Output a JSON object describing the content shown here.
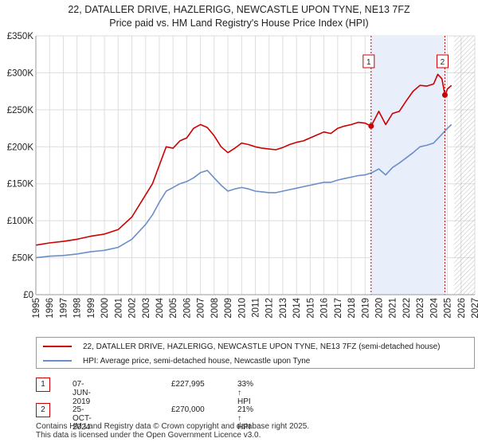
{
  "title_line1": "22, DATALLER DRIVE, HAZLERIGG, NEWCASTLE UPON TYNE, NE13 7FZ",
  "title_line2": "Price paid vs. HM Land Registry's House Price Index (HPI)",
  "colors": {
    "property": "#cc0000",
    "hpi": "#6a8fc8",
    "band": "#e8eefa",
    "grid": "#dddddd"
  },
  "chart_data": {
    "type": "line",
    "title": "22, DATALLER DRIVE, HAZLERIGG, NEWCASTLE UPON TYNE, NE13 7FZ — Price paid vs. HM Land Registry's House Price Index (HPI)",
    "xlabel": "",
    "ylabel": "",
    "xlim": [
      1995,
      2027
    ],
    "ylim": [
      0,
      350000
    ],
    "x_ticks": [
      1995,
      1996,
      1997,
      1998,
      1999,
      2000,
      2001,
      2002,
      2003,
      2004,
      2005,
      2006,
      2007,
      2008,
      2009,
      2010,
      2011,
      2012,
      2013,
      2014,
      2015,
      2016,
      2017,
      2018,
      2019,
      2020,
      2021,
      2022,
      2023,
      2024,
      2025,
      2026,
      2027
    ],
    "y_ticks": [
      0,
      50000,
      100000,
      150000,
      200000,
      250000,
      300000,
      350000
    ],
    "y_tick_labels": [
      "£0",
      "£50K",
      "£100K",
      "£150K",
      "£200K",
      "£250K",
      "£300K",
      "£350K"
    ],
    "highlight_band": [
      2019.44,
      2024.82
    ],
    "future_hatch_from": 2025.5,
    "series": [
      {
        "name": "22, DATALLER DRIVE, HAZLERIGG, NEWCASTLE UPON TYNE, NE13 7FZ (semi-detached house)",
        "color": "#cc0000",
        "x": [
          1995,
          1996,
          1997,
          1998,
          1999,
          2000,
          2001,
          2002,
          2003,
          2003.5,
          2004,
          2004.5,
          2005,
          2005.5,
          2006,
          2006.5,
          2007,
          2007.5,
          2008,
          2008.5,
          2009,
          2009.5,
          2010,
          2010.5,
          2011,
          2011.5,
          2012,
          2012.5,
          2013,
          2013.5,
          2014,
          2014.5,
          2015,
          2015.5,
          2016,
          2016.5,
          2017,
          2017.5,
          2018,
          2018.5,
          2019,
          2019.44,
          2019.7,
          2020,
          2020.5,
          2021,
          2021.5,
          2022,
          2022.5,
          2023,
          2023.5,
          2024,
          2024.3,
          2024.6,
          2024.82,
          2025,
          2025.3
        ],
        "values": [
          67000,
          70000,
          72000,
          75000,
          79000,
          82000,
          88000,
          105000,
          135000,
          150000,
          175000,
          200000,
          198000,
          208000,
          212000,
          225000,
          230000,
          226000,
          215000,
          200000,
          192000,
          198000,
          205000,
          203000,
          200000,
          198000,
          197000,
          196000,
          199000,
          203000,
          206000,
          208000,
          212000,
          216000,
          220000,
          218000,
          225000,
          228000,
          230000,
          233000,
          232000,
          227995,
          237000,
          248000,
          230000,
          245000,
          248000,
          262000,
          275000,
          283000,
          282000,
          285000,
          298000,
          292000,
          270000,
          278000,
          283000
        ]
      },
      {
        "name": "HPI: Average price, semi-detached house, Newcastle upon Tyne",
        "color": "#6a8fc8",
        "x": [
          1995,
          1996,
          1997,
          1998,
          1999,
          2000,
          2001,
          2002,
          2003,
          2003.5,
          2004,
          2004.5,
          2005,
          2005.5,
          2006,
          2006.5,
          2007,
          2007.5,
          2008,
          2008.5,
          2009,
          2009.5,
          2010,
          2010.5,
          2011,
          2011.5,
          2012,
          2012.5,
          2013,
          2013.5,
          2014,
          2014.5,
          2015,
          2015.5,
          2016,
          2016.5,
          2017,
          2017.5,
          2018,
          2018.5,
          2019,
          2019.5,
          2020,
          2020.5,
          2021,
          2021.5,
          2022,
          2022.5,
          2023,
          2023.5,
          2024,
          2024.5,
          2025,
          2025.3
        ],
        "values": [
          50000,
          52000,
          53000,
          55000,
          58000,
          60000,
          64000,
          75000,
          95000,
          108000,
          125000,
          140000,
          145000,
          150000,
          153000,
          158000,
          165000,
          168000,
          158000,
          148000,
          140000,
          143000,
          145000,
          143000,
          140000,
          139000,
          138000,
          138000,
          140000,
          142000,
          144000,
          146000,
          148000,
          150000,
          152000,
          152000,
          155000,
          157000,
          159000,
          161000,
          162000,
          165000,
          170000,
          162000,
          172000,
          178000,
          185000,
          192000,
          200000,
          202000,
          205000,
          215000,
          225000,
          230000
        ]
      }
    ],
    "markers": [
      {
        "label": "1",
        "x": 2019.44,
        "value": 227995
      },
      {
        "label": "2",
        "x": 2024.82,
        "value": 270000
      }
    ]
  },
  "legend": {
    "property_label": "22, DATALLER DRIVE, HAZLERIGG, NEWCASTLE UPON TYNE, NE13 7FZ (semi-detached house)",
    "hpi_label": "HPI: Average price, semi-detached house, Newcastle upon Tyne"
  },
  "sales": [
    {
      "num": "1",
      "date": "07-JUN-2019",
      "price": "£227,995",
      "hpi": "33% ↑ HPI"
    },
    {
      "num": "2",
      "date": "25-OCT-2024",
      "price": "£270,000",
      "hpi": "21% ↑ HPI"
    }
  ],
  "footer_line1": "Contains HM Land Registry data © Crown copyright and database right 2025.",
  "footer_line2": "This data is licensed under the Open Government Licence v3.0."
}
